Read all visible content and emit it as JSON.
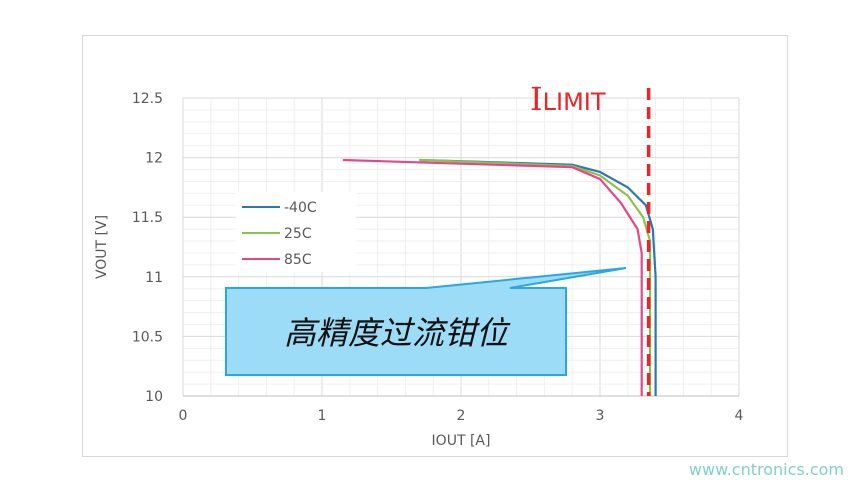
{
  "chart_data": {
    "type": "line",
    "xlabel": "IOUT [A]",
    "ylabel": "VOUT [V]",
    "xlim": [
      0,
      4
    ],
    "ylim": [
      10,
      12.5
    ],
    "xticks": [
      "0",
      "1",
      "2",
      "3",
      "4"
    ],
    "yticks": [
      "10",
      "10.5",
      "11",
      "11.5",
      "12",
      "12.5"
    ],
    "grid": true,
    "legend_placement": "left",
    "series": [
      {
        "name": "-40C",
        "color": "#2e75b6",
        "points": [
          [
            1.7,
            11.98
          ],
          [
            2.8,
            11.94
          ],
          [
            3.0,
            11.88
          ],
          [
            3.2,
            11.75
          ],
          [
            3.33,
            11.6
          ],
          [
            3.38,
            11.4
          ],
          [
            3.4,
            11.0
          ],
          [
            3.4,
            10
          ]
        ]
      },
      {
        "name": "25C",
        "color": "#8bc34a",
        "points": [
          [
            1.7,
            11.98
          ],
          [
            2.8,
            11.93
          ],
          [
            3.0,
            11.85
          ],
          [
            3.2,
            11.68
          ],
          [
            3.31,
            11.5
          ],
          [
            3.36,
            11.3
          ],
          [
            3.36,
            10
          ]
        ]
      },
      {
        "name": "85C",
        "color": "#e8458b",
        "points": [
          [
            1.15,
            11.98
          ],
          [
            2.8,
            11.92
          ],
          [
            3.0,
            11.82
          ],
          [
            3.15,
            11.62
          ],
          [
            3.27,
            11.4
          ],
          [
            3.3,
            11.2
          ],
          [
            3.3,
            10
          ]
        ]
      }
    ],
    "limit": {
      "x": 3.35,
      "label_main": "I",
      "label_sub": "LIMIT",
      "color": "#e8262a"
    },
    "callout": {
      "text": "高精度过流钳位",
      "fill": "#9ddcf7",
      "stroke": "#29a8e0"
    }
  },
  "watermark": "www.cntronics.com"
}
